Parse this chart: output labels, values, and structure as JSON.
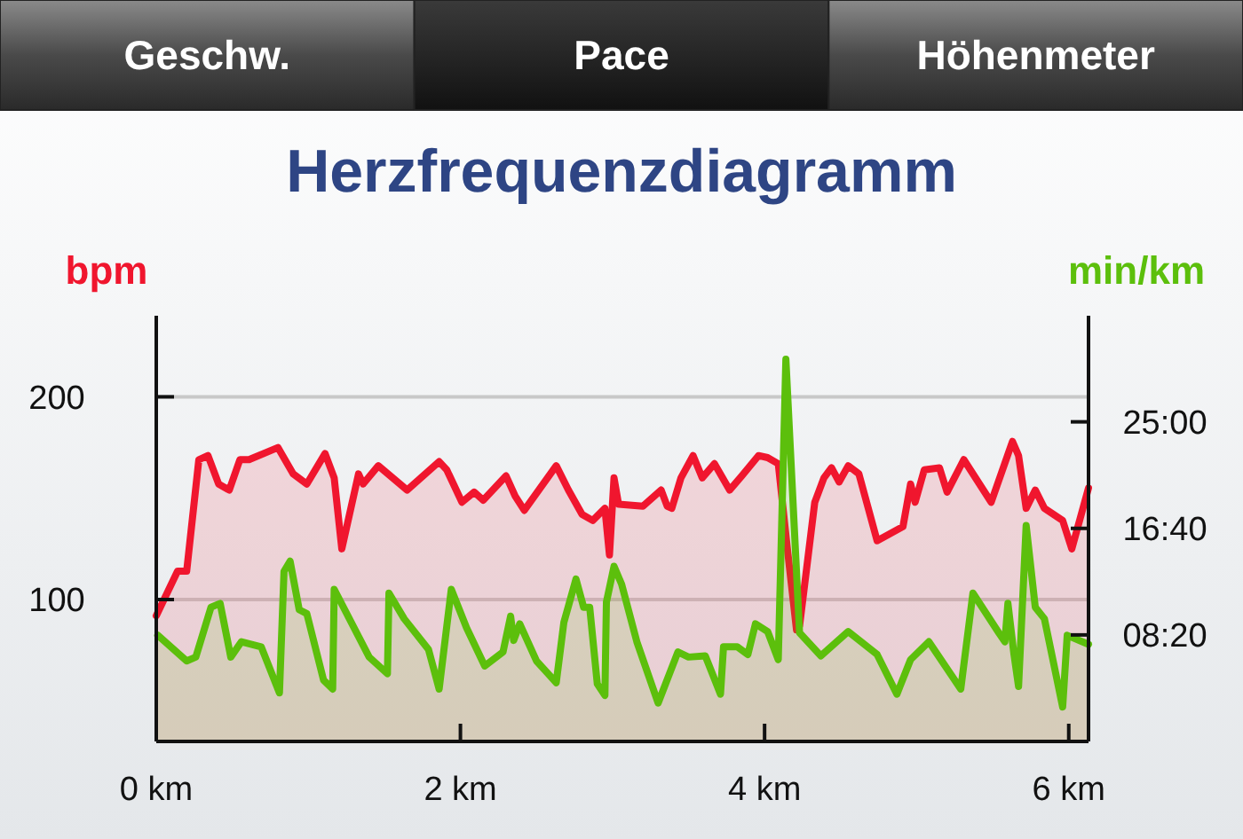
{
  "chart_data": {
    "type": "area",
    "title": "Herzfrequenzdiagramm",
    "ylabel": "bpm",
    "y2label": "min/km",
    "annotations": [
      "Geschw.",
      "Pace",
      "Höhenmeter"
    ],
    "xlim": [
      0,
      6.13
    ],
    "xticks": [
      {
        "value": 0,
        "label": "0 km"
      },
      {
        "value": 2,
        "label": "2 km"
      },
      {
        "value": 4,
        "label": "4 km"
      },
      {
        "value": 6,
        "label": "6 km"
      }
    ],
    "ylim": [
      30,
      240
    ],
    "yticks": [
      100,
      200
    ],
    "y2lim": [
      0,
      33.3
    ],
    "y2ticks": [
      {
        "value": 8.333,
        "label": "08:20"
      },
      {
        "value": 16.667,
        "label": "16:40"
      },
      {
        "value": 25,
        "label": "25:00"
      }
    ],
    "grid": "y",
    "series": [
      {
        "color": "#f0162e",
        "x": [
          0,
          0.14,
          0.2,
          0.28,
          0.34,
          0.41,
          0.48,
          0.55,
          0.61,
          0.8,
          0.9,
          0.99,
          1.11,
          1.17,
          1.22,
          1.33,
          1.36,
          1.46,
          1.65,
          1.86,
          1.91,
          2.01,
          2.09,
          2.15,
          2.3,
          2.36,
          2.42,
          2.63,
          2.71,
          2.8,
          2.87,
          2.95,
          2.98,
          3.01,
          3.04,
          3.2,
          3.32,
          3.36,
          3.39,
          3.45,
          3.53,
          3.59,
          3.67,
          3.77,
          3.85,
          3.96,
          4.02,
          4.09,
          4.15,
          4.21,
          4.23,
          4.33,
          4.39,
          4.44,
          4.49,
          4.55,
          4.62,
          4.74,
          4.91,
          4.96,
          4.99,
          5.05,
          5.15,
          5.2,
          5.31,
          5.49,
          5.63,
          5.67,
          5.72,
          5.78,
          5.84,
          5.96,
          6.02,
          6.13
        ],
        "values": [
          92,
          114,
          114,
          169,
          171,
          157,
          154,
          169,
          169,
          175,
          162,
          157,
          172,
          160,
          125,
          162,
          157,
          166,
          154,
          168,
          164,
          148,
          153,
          149,
          161,
          151,
          144,
          166,
          154,
          142,
          139,
          145,
          122,
          160,
          147,
          146,
          154,
          146,
          145,
          160,
          171,
          160,
          167,
          154,
          161,
          171,
          170,
          167,
          125,
          85,
          87,
          148,
          160,
          165,
          158,
          166,
          162,
          129,
          136,
          157,
          148,
          164,
          165,
          153,
          169,
          148,
          178,
          171,
          145,
          154,
          145,
          139,
          125,
          155
        ]
      },
      {
        "color": "#5cbf0c",
        "axis": "y2",
        "x": [
          0.01,
          0.2,
          0.26,
          0.36,
          0.42,
          0.49,
          0.56,
          0.69,
          0.81,
          0.84,
          0.88,
          0.94,
          0.99,
          1.1,
          1.16,
          1.17,
          1.4,
          1.52,
          1.53,
          1.63,
          1.79,
          1.86,
          1.94,
          2.04,
          2.16,
          2.28,
          2.33,
          2.35,
          2.39,
          2.5,
          2.63,
          2.68,
          2.76,
          2.81,
          2.85,
          2.9,
          2.95,
          2.96,
          3.01,
          3.06,
          3.16,
          3.3,
          3.43,
          3.5,
          3.61,
          3.71,
          3.73,
          3.82,
          3.89,
          3.94,
          4.02,
          4.09,
          4.14,
          4.23,
          4.37,
          4.55,
          4.74,
          4.87,
          4.96,
          5.08,
          5.29,
          5.37,
          5.54,
          5.58,
          5.6,
          5.64,
          5.67,
          5.72,
          5.78,
          5.84,
          5.96,
          5.99,
          6.13
        ],
        "values": [
          8.3,
          6.3,
          6.6,
          10.5,
          10.8,
          6.6,
          7.8,
          7.4,
          3.8,
          13.3,
          14.1,
          10.3,
          10,
          4.8,
          4.1,
          11.9,
          6.6,
          5.3,
          11.6,
          9.6,
          7.2,
          4.1,
          11.9,
          8.9,
          5.9,
          7,
          9.8,
          7.9,
          9.2,
          6.3,
          4.6,
          9.3,
          12.7,
          10.5,
          10.5,
          4.5,
          3.6,
          10.9,
          13.7,
          12.3,
          7.8,
          3,
          7,
          6.6,
          6.7,
          3.7,
          7.4,
          7.4,
          6.8,
          9.2,
          8.6,
          6.4,
          29.9,
          8.5,
          6.7,
          8.6,
          6.8,
          3.7,
          6.4,
          7.8,
          4.1,
          11.6,
          8.5,
          7.8,
          10.8,
          6.8,
          4.3,
          16.9,
          10.5,
          9.6,
          2.7,
          8.3,
          7.6
        ]
      }
    ]
  }
}
